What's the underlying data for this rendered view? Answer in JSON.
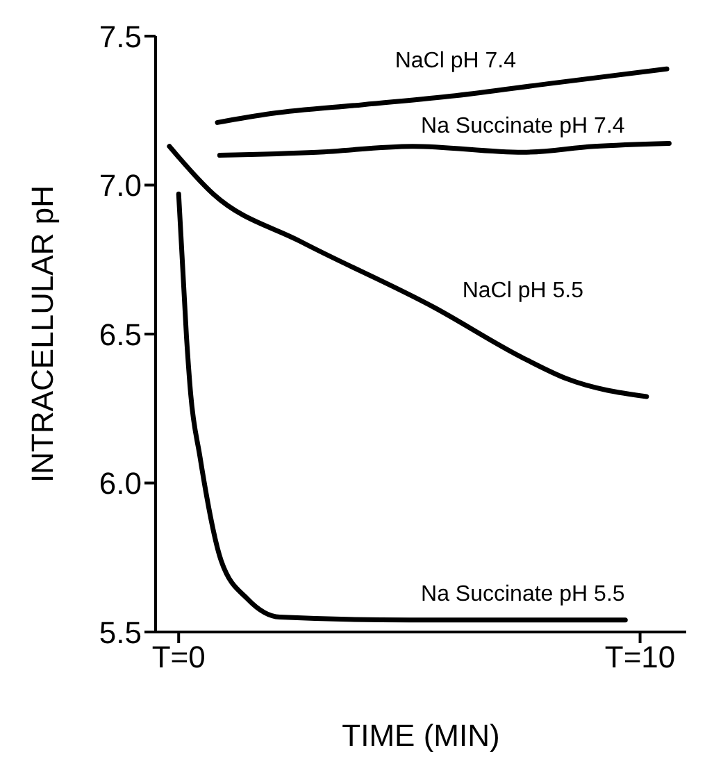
{
  "chart_data": {
    "type": "line",
    "xlabel": "TIME (MIN)",
    "ylabel": "INTRACELLULAR pH",
    "xlim": [
      -0.5,
      11
    ],
    "xticks": [
      {
        "value": 0,
        "label": "T=0"
      },
      {
        "value": 10,
        "label": "T=10"
      }
    ],
    "ylim": [
      5.5,
      7.5
    ],
    "yticks": [
      {
        "value": 5.5,
        "label": "5.5"
      },
      {
        "value": 6,
        "label": "6.0"
      },
      {
        "value": 6.5,
        "label": "6.5"
      },
      {
        "value": 7,
        "label": "7.0"
      },
      {
        "value": 7.5,
        "label": "7.5"
      }
    ],
    "grid": false,
    "legend": false,
    "marker": "none",
    "line_style": "solid",
    "series": [
      {
        "name": "NaCl  pH 7.4",
        "color": "#000000",
        "x": [
          0.84,
          2,
          4,
          6,
          8,
          10.58
        ],
        "values": [
          7.21,
          7.24,
          7.27,
          7.3,
          7.34,
          7.39
        ]
      },
      {
        "name": "Na Succinate  pH 7.4",
        "color": "#000000",
        "x": [
          0.89,
          3,
          5.07,
          7.46,
          9,
          10.63
        ],
        "values": [
          7.1,
          7.11,
          7.13,
          7.11,
          7.13,
          7.14
        ]
      },
      {
        "name": "NaCl  pH 5.5",
        "color": "#000000",
        "x": [
          -0.2,
          0.75,
          2.65,
          5.53,
          7.46,
          8.41,
          10.14
        ],
        "values": [
          7.13,
          6.97,
          6.81,
          6.59,
          6.42,
          6.35,
          6.29
        ]
      },
      {
        "name": "Na Succinate pH 5.5",
        "color": "#000000",
        "x": [
          0,
          0.17,
          0.26,
          0.46,
          0.92,
          1.5,
          2.19,
          5,
          7.46,
          9.68
        ],
        "values": [
          6.97,
          6.49,
          6.3,
          6.09,
          5.74,
          5.61,
          5.55,
          5.54,
          5.54,
          5.54
        ]
      }
    ]
  }
}
